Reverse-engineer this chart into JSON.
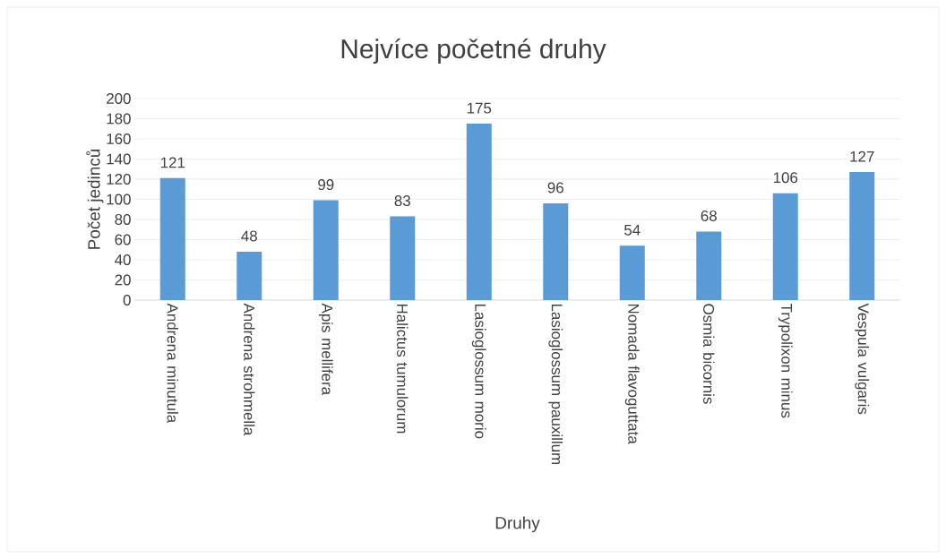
{
  "chart_data": {
    "type": "bar",
    "title": "Nejvíce početné druhy",
    "xlabel": "Druhy",
    "ylabel": "Počet jedinců",
    "categories": [
      "Andrena minutula",
      "Andrena strohmella",
      "Apis mellifera",
      "Halictus tumulorum",
      "Lasioglossum morio",
      "Lasioglossum pauxillum",
      "Nomada flavoguttata",
      "Osmia bicornis",
      "Trypolixon minus",
      "Vespula vulgaris"
    ],
    "values": [
      121,
      48,
      99,
      83,
      175,
      96,
      54,
      68,
      106,
      127
    ],
    "color": "#5b9bd5",
    "ylim": [
      0,
      200
    ],
    "yticks": [
      0,
      20,
      40,
      60,
      80,
      100,
      120,
      140,
      160,
      180,
      200
    ],
    "grid": "y",
    "data_labels": true
  }
}
